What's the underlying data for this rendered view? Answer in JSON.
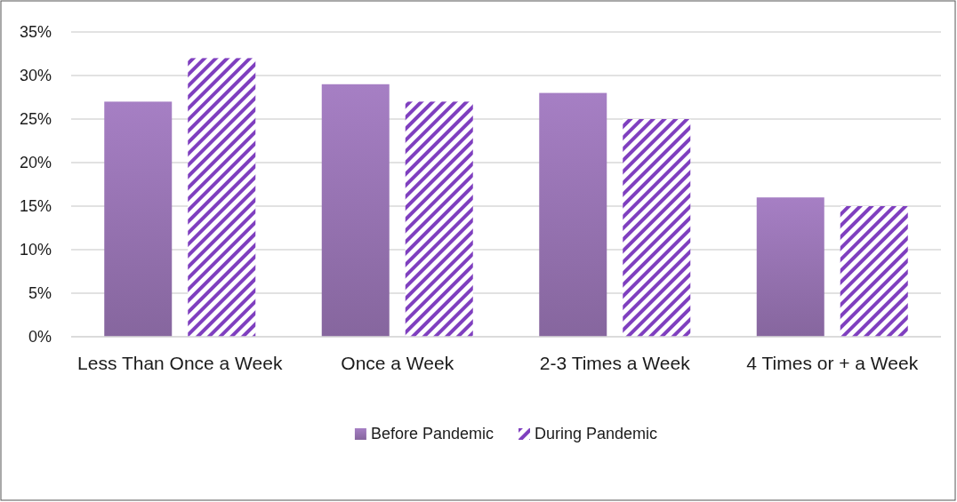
{
  "chart_data": {
    "type": "bar",
    "categories": [
      "Less Than Once a Week",
      "Once a Week",
      "2-3 Times a Week",
      "4 Times or + a Week"
    ],
    "series": [
      {
        "name": "Before Pandemic",
        "color": "#9572b0",
        "values": [
          27,
          29,
          28,
          16
        ]
      },
      {
        "name": "During Pandemic",
        "color": "#7f3fbf",
        "values": [
          32,
          27,
          25,
          15
        ]
      }
    ],
    "ylim": [
      0,
      35
    ],
    "yticks": [
      {
        "value": 0,
        "label": "0%"
      },
      {
        "value": 5,
        "label": "5%"
      },
      {
        "value": 10,
        "label": "10%"
      },
      {
        "value": 15,
        "label": "15%"
      },
      {
        "value": 20,
        "label": "20%"
      },
      {
        "value": 25,
        "label": "25%"
      },
      {
        "value": 30,
        "label": "30%"
      },
      {
        "value": 35,
        "label": "35%"
      }
    ],
    "grid": "y",
    "legend": "bottom"
  }
}
